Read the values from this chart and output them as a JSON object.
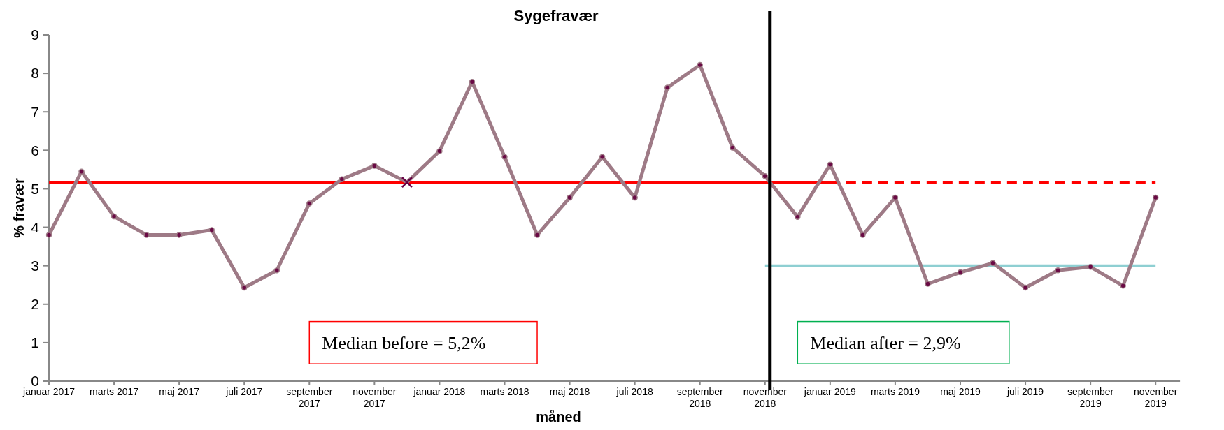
{
  "chart_data": {
    "type": "line",
    "title": "Sygefravær",
    "xlabel": "måned",
    "ylabel": "% fravær",
    "categories": [
      "januar 2017",
      null,
      "marts 2017",
      null,
      "maj 2017",
      null,
      "juli 2017",
      null,
      "september 2017",
      null,
      "november 2017",
      null,
      "januar 2018",
      null,
      "marts 2018",
      null,
      "maj 2018",
      null,
      "juli 2018",
      null,
      "september 2018",
      null,
      "november 2018",
      null,
      "januar 2019",
      null,
      "marts 2019",
      null,
      "maj 2019",
      null,
      "juli 2019",
      null,
      "september 2019",
      null,
      "november 2019"
    ],
    "series": [
      {
        "color": "#ff0000",
        "line_style": "solid",
        "marker": "none",
        "values": [
          5.16,
          5.16,
          5.16,
          5.16,
          5.16,
          5.16,
          5.16,
          5.16,
          5.16,
          5.16,
          5.16,
          5.16,
          5.16,
          5.16,
          5.16,
          5.16,
          5.16,
          5.16,
          5.16,
          5.16,
          5.16,
          5.16,
          5.16,
          5.16,
          5.16,
          null,
          null,
          null,
          null,
          null,
          null,
          null,
          null,
          null,
          null
        ]
      },
      {
        "color": "#ff0000",
        "line_style": "dashed",
        "marker": "none",
        "values": [
          null,
          null,
          null,
          null,
          null,
          null,
          null,
          null,
          null,
          null,
          null,
          null,
          null,
          null,
          null,
          null,
          null,
          null,
          null,
          null,
          null,
          null,
          null,
          null,
          5.16,
          5.16,
          5.16,
          5.16,
          5.16,
          5.16,
          5.16,
          5.16,
          5.16,
          5.16,
          5.16
        ]
      },
      {
        "color": "#8ecfd2",
        "line_style": "solid",
        "marker": "none",
        "values": [
          null,
          null,
          null,
          null,
          null,
          null,
          null,
          null,
          null,
          null,
          null,
          null,
          null,
          null,
          null,
          null,
          null,
          null,
          null,
          null,
          null,
          null,
          3.0,
          3.0,
          3.0,
          3.0,
          3.0,
          3.0,
          3.0,
          3.0,
          3.0,
          3.0,
          3.0,
          3.0,
          3.0
        ]
      },
      {
        "color": "#9e7a86",
        "line_style": "solid",
        "marker": "circle",
        "values": [
          3.8,
          5.45,
          4.28,
          3.8,
          3.8,
          3.93,
          2.43,
          2.88,
          4.62,
          5.25,
          5.6,
          5.17,
          5.98,
          7.78,
          5.83,
          3.8,
          4.77,
          5.83,
          4.77,
          7.63,
          8.22,
          6.07,
          5.33,
          4.27,
          5.63,
          3.8,
          4.77,
          2.53,
          2.83,
          3.07,
          2.43,
          2.88,
          2.97,
          2.48,
          4.77
        ]
      },
      {
        "type": "scatter",
        "color": "#660044",
        "marker": "cross",
        "values": [
          null,
          null,
          null,
          null,
          null,
          null,
          null,
          null,
          null,
          null,
          null,
          5.17,
          null,
          null,
          null,
          null,
          null,
          null,
          null,
          null,
          null,
          null,
          null,
          null,
          null,
          null,
          null,
          null,
          null,
          null,
          null,
          null,
          null,
          null,
          null
        ]
      }
    ],
    "ylim": [
      0,
      9
    ],
    "yticks": [
      0,
      1,
      2,
      3,
      4,
      5,
      6,
      7,
      8,
      9
    ],
    "grid": false,
    "ref_lines": [
      {
        "axis": "x",
        "value": "november 2018",
        "color": "#000000"
      }
    ],
    "annotations": [
      "Median before = 5,2%",
      "Median after = 2,9%"
    ]
  }
}
